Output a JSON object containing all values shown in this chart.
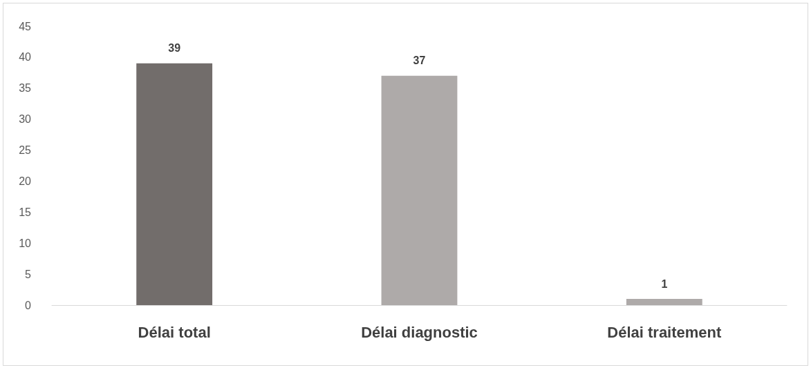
{
  "chart_data": {
    "type": "bar",
    "categories": [
      "Délai total",
      "Délai diagnostic",
      "Délai traitement"
    ],
    "values": [
      39,
      37,
      1
    ],
    "colors": [
      "#726d6b",
      "#aeaaa9",
      "#aeaaa9"
    ],
    "ylim": [
      0,
      45
    ],
    "yticks": [
      0,
      5,
      10,
      15,
      20,
      25,
      30,
      35,
      40,
      45
    ],
    "grid": false,
    "data_labels": true
  }
}
